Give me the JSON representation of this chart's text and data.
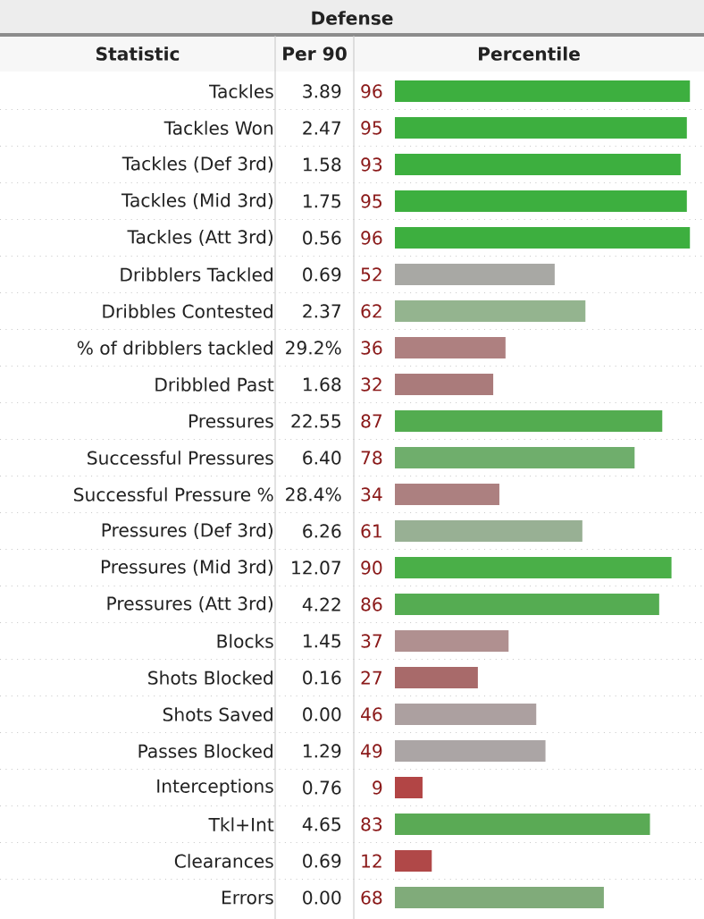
{
  "chart_data": {
    "type": "bar",
    "orientation": "horizontal",
    "title": "Defense",
    "xlabel": "Percentile",
    "categories": [
      "Tackles",
      "Tackles Won",
      "Tackles (Def 3rd)",
      "Tackles (Mid 3rd)",
      "Tackles (Att 3rd)",
      "Dribblers Tackled",
      "Dribbles Contested",
      "% of dribblers tackled",
      "Dribbled Past",
      "Pressures",
      "Successful Pressures",
      "Successful Pressure %",
      "Pressures (Def 3rd)",
      "Pressures (Mid 3rd)",
      "Pressures (Att 3rd)",
      "Blocks",
      "Shots Blocked",
      "Shots Saved",
      "Passes Blocked",
      "Interceptions",
      "Tkl+Int",
      "Clearances",
      "Errors"
    ],
    "values": [
      96,
      95,
      93,
      95,
      96,
      52,
      62,
      36,
      32,
      87,
      78,
      34,
      61,
      90,
      86,
      37,
      27,
      46,
      49,
      9,
      83,
      12,
      68
    ],
    "colors": [
      "#3daf3f",
      "#3daf3f",
      "#3daf3f",
      "#3daf3f",
      "#3daf3f",
      "#a8a8a4",
      "#94b48f",
      "#ae8080",
      "#aa7b7b",
      "#53ac50",
      "#6fae6c",
      "#ac8080",
      "#98b094",
      "#4aaf48",
      "#55ac52",
      "#b09090",
      "#a86a6a",
      "#aca0a0",
      "#aba5a5",
      "#b24545",
      "#5aaa55",
      "#b04848",
      "#80ab7a"
    ],
    "xlim": [
      0,
      100
    ],
    "data_labels": true,
    "annotations": [
      "Statistic",
      "Per 90",
      "3.89",
      "2.47",
      "1.58",
      "1.75",
      "0.56",
      "0.69",
      "2.37",
      "29.2%",
      "1.68",
      "22.55",
      "6.40",
      "28.4%",
      "6.26",
      "12.07",
      "4.22",
      "1.45",
      "0.16",
      "0.00",
      "1.29",
      "0.76",
      "4.65",
      "0.69",
      "0.00"
    ]
  }
}
